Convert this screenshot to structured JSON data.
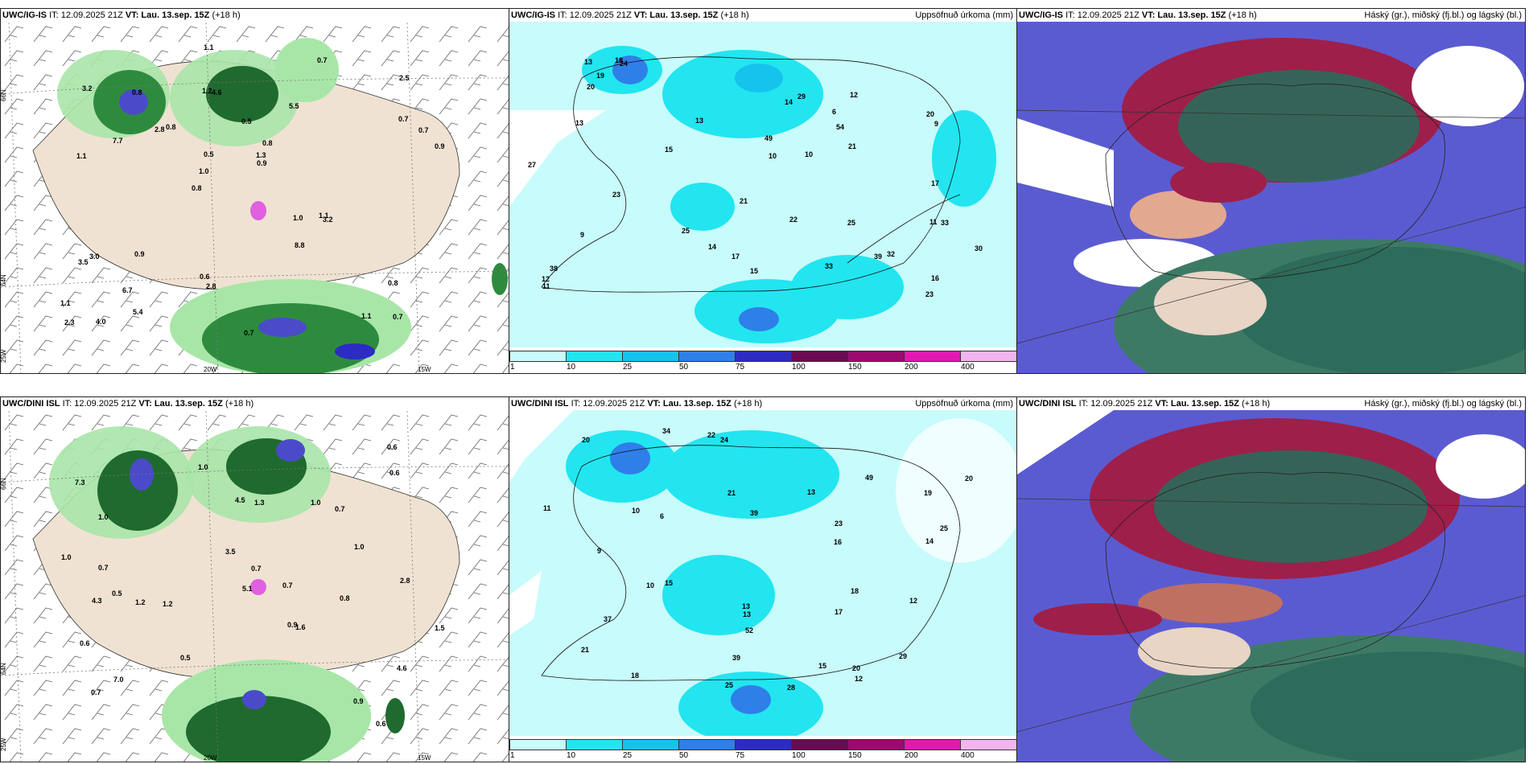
{
  "panels": [
    {
      "model": "UWC/IG-IS",
      "it": "IT: 12.09.2025 21Z",
      "vt": "VT: Lau. 13.sep. 15Z",
      "lead": "(+18 h)",
      "field": ""
    },
    {
      "model": "UWC/IG-IS",
      "it": "IT: 12.09.2025 21Z",
      "vt": "VT: Lau. 13.sep. 15Z",
      "lead": "(+18 h)",
      "field": "Uppsöfnuð úrkoma (mm)"
    },
    {
      "model": "UWC/IG-IS",
      "it": "IT: 12.09.2025 21Z",
      "vt": "VT: Lau. 13.sep. 15Z",
      "lead": "(+18 h)",
      "field": "Háský (gr.), miðský (fj.bl.) og lágský (bl.)"
    },
    {
      "model": "UWC/DINI ISL",
      "it": "IT: 12.09.2025 21Z",
      "vt": "VT: Lau. 13.sep. 15Z",
      "lead": "(+18 h)",
      "field": ""
    },
    {
      "model": "UWC/DINI ISL",
      "it": "IT: 12.09.2025 21Z",
      "vt": "VT: Lau. 13.sep. 15Z",
      "lead": "(+18 h)",
      "field": "Uppsöfnuð úrkoma (mm)"
    },
    {
      "model": "UWC/DINI ISL",
      "it": "IT: 12.09.2025 21Z",
      "vt": "VT: Lau. 13.sep. 15Z",
      "lead": "(+18 h)",
      "field": "Háský (gr.), miðský (fj.bl.) og lágský (bl.)"
    }
  ],
  "grid_labels": {
    "lat1": "66N",
    "lat2": "64N",
    "lon1": "25W",
    "lon2": "20W",
    "lon3": "15W"
  },
  "colorbar": {
    "ticks": [
      "1",
      "10",
      "25",
      "50",
      "75",
      "100",
      "150",
      "200",
      "400"
    ],
    "colors": [
      "#c8fbfb",
      "#22e5f0",
      "#15c3ec",
      "#2f7fe8",
      "#2c2cc4",
      "#6a0a52",
      "#9c0a70",
      "#e01ab0",
      "#f3b3ef"
    ]
  },
  "wind_values_top": [
    "0.7",
    "1.1",
    "2.5",
    "0.8",
    "5.5",
    "4.0",
    "1.2",
    "0.5",
    "3.0",
    "0.8",
    "1.1",
    "6.7",
    "4.6",
    "0.8",
    "3.2",
    "3.2",
    "1.1",
    "0.9",
    "1.0",
    "0.7",
    "1.0",
    "0.6",
    "0.5",
    "0.8",
    "0.7",
    "0.9",
    "1.1",
    "0.8",
    "1.1",
    "0.7",
    "2.8",
    "7.7",
    "8.8",
    "5.4",
    "0.7",
    "1.3",
    "2.3",
    "2.8",
    "0.9",
    "3.5"
  ],
  "wind_values_bottom": [
    "0.6",
    "0.5",
    "0.9",
    "7.3",
    "4.6",
    "1.0",
    "7.0",
    "1.2",
    "0.7",
    "4.5",
    "1.0",
    "0.9",
    "0.5",
    "1.0",
    "0.7",
    "0.6",
    "0.8",
    "0.7",
    "1.0",
    "0.7",
    "0.6",
    "1.3",
    "1.0",
    "1.5",
    "2.8",
    "0.7",
    "1.2",
    "5.1",
    "3.5",
    "0.6",
    "1.6",
    "4.3"
  ],
  "precip_values_top": [
    "9",
    "10",
    "11",
    "30",
    "29",
    "32",
    "49",
    "54",
    "33",
    "38",
    "24",
    "22",
    "17",
    "15",
    "13",
    "14",
    "23",
    "20",
    "16",
    "25",
    "23",
    "12",
    "15",
    "13",
    "18",
    "27",
    "39",
    "33",
    "20",
    "21",
    "17",
    "12",
    "10",
    "9",
    "11",
    "14",
    "25",
    "21",
    "19",
    "13",
    "6"
  ],
  "precip_values_bottom": [
    "9",
    "34",
    "39",
    "49",
    "52",
    "20",
    "21",
    "19",
    "25",
    "28",
    "29",
    "18",
    "13",
    "15",
    "16",
    "13",
    "17",
    "21",
    "25",
    "10",
    "14",
    "20",
    "12",
    "15",
    "24",
    "22",
    "18",
    "37",
    "13",
    "39",
    "23",
    "20",
    "12",
    "6",
    "11",
    "10"
  ]
}
